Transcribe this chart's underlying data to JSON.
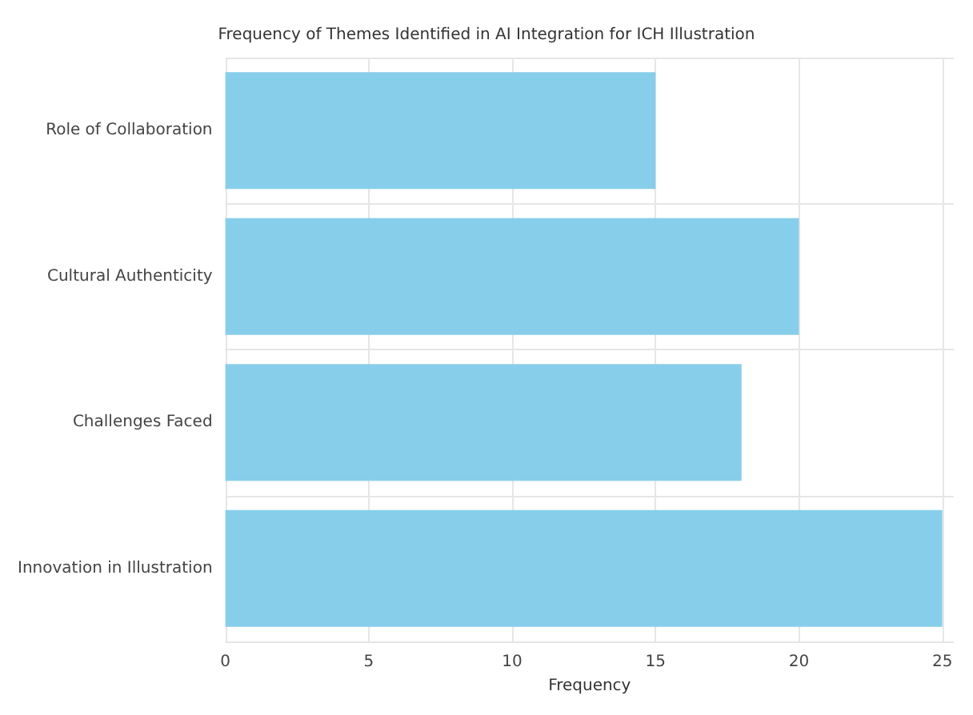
{
  "chart_data": {
    "type": "bar",
    "orientation": "horizontal",
    "title": "Frequency of Themes Identified in AI Integration for ICH Illustration",
    "xlabel": "Frequency",
    "categories": [
      "Role of Collaboration",
      "Cultural Authenticity",
      "Challenges Faced",
      "Innovation in Illustration"
    ],
    "values": [
      15,
      20,
      18,
      25
    ],
    "color": "#87ceeb",
    "xlim": [
      0,
      25.4
    ],
    "xticks": [
      0,
      5,
      10,
      15,
      20,
      25
    ],
    "grid": true
  }
}
